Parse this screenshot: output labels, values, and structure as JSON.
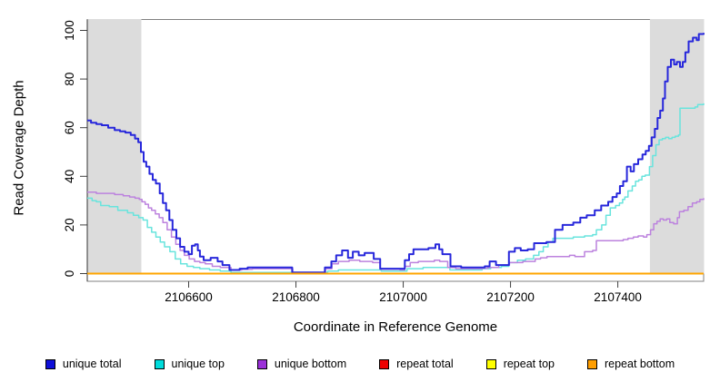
{
  "chart_data": {
    "type": "line",
    "title": "",
    "xlabel": "Coordinate in Reference Genome",
    "ylabel": "Read Coverage Depth",
    "xlim": [
      2106411,
      2107560
    ],
    "ylim": [
      0,
      100
    ],
    "x_ticks": [
      2106600,
      2106800,
      2107000,
      2107200,
      2107400
    ],
    "y_ticks": [
      0,
      20,
      40,
      60,
      80,
      100
    ],
    "grid": false,
    "legend_position": "bottom",
    "shaded_regions": [
      {
        "x0": 2106411,
        "x1": 2106511,
        "color": "#DCDCDC"
      },
      {
        "x0": 2107459,
        "x1": 2107560,
        "color": "#DCDCDC"
      }
    ],
    "draw_order": [
      "repeat total",
      "repeat top",
      "unique top",
      "unique bottom",
      "unique total",
      "repeat bottom"
    ],
    "series": [
      {
        "name": "unique total",
        "color": "#2727DB",
        "width": 2,
        "points": [
          [
            2106411,
            63
          ],
          [
            2106418,
            62
          ],
          [
            2106428,
            61.5
          ],
          [
            2106438,
            61
          ],
          [
            2106450,
            60
          ],
          [
            2106462,
            59
          ],
          [
            2106472,
            58.5
          ],
          [
            2106482,
            58
          ],
          [
            2106492,
            57
          ],
          [
            2106500,
            55.5
          ],
          [
            2106506,
            54
          ],
          [
            2106511,
            50
          ],
          [
            2106516,
            46
          ],
          [
            2106521,
            44
          ],
          [
            2106527,
            41
          ],
          [
            2106533,
            38.5
          ],
          [
            2106539,
            37
          ],
          [
            2106546,
            33
          ],
          [
            2106552,
            29
          ],
          [
            2106558,
            26
          ],
          [
            2106564,
            22
          ],
          [
            2106570,
            18
          ],
          [
            2106577,
            14.5
          ],
          [
            2106584,
            11
          ],
          [
            2106592,
            9
          ],
          [
            2106600,
            8
          ],
          [
            2106606,
            11.5
          ],
          [
            2106612,
            12
          ],
          [
            2106617,
            9.5
          ],
          [
            2106621,
            7
          ],
          [
            2106628,
            5.5
          ],
          [
            2106641,
            6.5
          ],
          [
            2106654,
            5
          ],
          [
            2106663,
            3.5
          ],
          [
            2106676,
            1.5
          ],
          [
            2106695,
            2
          ],
          [
            2106710,
            2.5
          ],
          [
            2106788,
            2.5
          ],
          [
            2106793,
            0.5
          ],
          [
            2106846,
            0.5
          ],
          [
            2106854,
            2.5
          ],
          [
            2106866,
            5
          ],
          [
            2106875,
            7.5
          ],
          [
            2106886,
            9.5
          ],
          [
            2106897,
            6.5
          ],
          [
            2106906,
            9
          ],
          [
            2106917,
            7.5
          ],
          [
            2106928,
            8.5
          ],
          [
            2106945,
            6
          ],
          [
            2106957,
            2
          ],
          [
            2106994,
            2
          ],
          [
            2107003,
            5.5
          ],
          [
            2107011,
            8
          ],
          [
            2107019,
            10
          ],
          [
            2107047,
            10.5
          ],
          [
            2107060,
            12
          ],
          [
            2107067,
            10
          ],
          [
            2107073,
            8
          ],
          [
            2107088,
            3
          ],
          [
            2107108,
            2.5
          ],
          [
            2107152,
            3
          ],
          [
            2107161,
            5
          ],
          [
            2107173,
            3.5
          ],
          [
            2107197,
            9
          ],
          [
            2107208,
            10.5
          ],
          [
            2107219,
            9.5
          ],
          [
            2107232,
            10
          ],
          [
            2107244,
            12.5
          ],
          [
            2107267,
            13
          ],
          [
            2107283,
            18
          ],
          [
            2107297,
            20
          ],
          [
            2107317,
            21
          ],
          [
            2107330,
            23
          ],
          [
            2107342,
            24
          ],
          [
            2107357,
            26
          ],
          [
            2107369,
            28
          ],
          [
            2107382,
            29.5
          ],
          [
            2107390,
            31.5
          ],
          [
            2107398,
            33
          ],
          [
            2107404,
            36
          ],
          [
            2107410,
            38
          ],
          [
            2107417,
            44
          ],
          [
            2107424,
            42
          ],
          [
            2107430,
            45
          ],
          [
            2107438,
            47
          ],
          [
            2107446,
            49
          ],
          [
            2107452,
            50.5
          ],
          [
            2107458,
            52.5
          ],
          [
            2107463,
            56
          ],
          [
            2107469,
            59.5
          ],
          [
            2107474,
            64
          ],
          [
            2107479,
            67
          ],
          [
            2107484,
            72
          ],
          [
            2107488,
            79
          ],
          [
            2107493,
            85
          ],
          [
            2107499,
            88
          ],
          [
            2107505,
            86
          ],
          [
            2107510,
            87
          ],
          [
            2107516,
            85
          ],
          [
            2107521,
            87
          ],
          [
            2107526,
            91
          ],
          [
            2107532,
            95.5
          ],
          [
            2107540,
            97
          ],
          [
            2107547,
            96
          ],
          [
            2107551,
            98.5
          ],
          [
            2107560,
            99
          ]
        ]
      },
      {
        "name": "unique top",
        "color": "#68E4DD",
        "width": 1.5,
        "points": [
          [
            2106411,
            31
          ],
          [
            2106420,
            30
          ],
          [
            2106428,
            29.5
          ],
          [
            2106436,
            28
          ],
          [
            2106452,
            27.5
          ],
          [
            2106468,
            26
          ],
          [
            2106486,
            25
          ],
          [
            2106497,
            24
          ],
          [
            2106507,
            23
          ],
          [
            2106515,
            22
          ],
          [
            2106523,
            19
          ],
          [
            2106531,
            17
          ],
          [
            2106539,
            15
          ],
          [
            2106547,
            13
          ],
          [
            2106555,
            11
          ],
          [
            2106565,
            9
          ],
          [
            2106575,
            6
          ],
          [
            2106585,
            4
          ],
          [
            2106597,
            3
          ],
          [
            2106609,
            2.5
          ],
          [
            2106621,
            2
          ],
          [
            2106639,
            1.5
          ],
          [
            2106659,
            1
          ],
          [
            2106679,
            0.5
          ],
          [
            2106849,
            0.5
          ],
          [
            2106859,
            1
          ],
          [
            2106879,
            1.5
          ],
          [
            2106929,
            1.5
          ],
          [
            2106959,
            1
          ],
          [
            2107007,
            2
          ],
          [
            2107037,
            2.5
          ],
          [
            2107087,
            1.5
          ],
          [
            2107147,
            2
          ],
          [
            2107163,
            2.5
          ],
          [
            2107183,
            3
          ],
          [
            2107197,
            4.5
          ],
          [
            2107213,
            5.5
          ],
          [
            2107228,
            6
          ],
          [
            2107243,
            7.5
          ],
          [
            2107253,
            9
          ],
          [
            2107261,
            11
          ],
          [
            2107270,
            13
          ],
          [
            2107279,
            14.5
          ],
          [
            2107317,
            15
          ],
          [
            2107338,
            15.5
          ],
          [
            2107353,
            16
          ],
          [
            2107360,
            18
          ],
          [
            2107370,
            20
          ],
          [
            2107378,
            24
          ],
          [
            2107386,
            27
          ],
          [
            2107396,
            28
          ],
          [
            2107403,
            29
          ],
          [
            2107409,
            30.5
          ],
          [
            2107413,
            31.5
          ],
          [
            2107419,
            34
          ],
          [
            2107427,
            36
          ],
          [
            2107433,
            38
          ],
          [
            2107439,
            38.5
          ],
          [
            2107445,
            40
          ],
          [
            2107451,
            40.5
          ],
          [
            2107459,
            44
          ],
          [
            2107465,
            48.5
          ],
          [
            2107471,
            53
          ],
          [
            2107477,
            55
          ],
          [
            2107483,
            55.5
          ],
          [
            2107489,
            56
          ],
          [
            2107495,
            55.5
          ],
          [
            2107501,
            56
          ],
          [
            2107507,
            56.5
          ],
          [
            2107513,
            57
          ],
          [
            2107516,
            68
          ],
          [
            2107544,
            68.5
          ],
          [
            2107549,
            69.5
          ],
          [
            2107560,
            70
          ]
        ]
      },
      {
        "name": "unique bottom",
        "color": "#BC82DE",
        "width": 1.5,
        "points": [
          [
            2106411,
            33.5
          ],
          [
            2106428,
            33
          ],
          [
            2106462,
            32.5
          ],
          [
            2106478,
            32
          ],
          [
            2106490,
            31.5
          ],
          [
            2106500,
            31
          ],
          [
            2106508,
            30.5
          ],
          [
            2106513,
            29.5
          ],
          [
            2106519,
            28.5
          ],
          [
            2106525,
            27
          ],
          [
            2106531,
            26
          ],
          [
            2106538,
            24.5
          ],
          [
            2106545,
            23
          ],
          [
            2106552,
            21
          ],
          [
            2106560,
            18
          ],
          [
            2106568,
            15
          ],
          [
            2106576,
            12
          ],
          [
            2106584,
            9.5
          ],
          [
            2106592,
            7.5
          ],
          [
            2106601,
            6
          ],
          [
            2106611,
            5
          ],
          [
            2106621,
            4.5
          ],
          [
            2106631,
            4
          ],
          [
            2106644,
            3
          ],
          [
            2106659,
            2.5
          ],
          [
            2106679,
            1.5
          ],
          [
            2106699,
            1.8
          ],
          [
            2106719,
            2
          ],
          [
            2106788,
            2
          ],
          [
            2106794,
            0.3
          ],
          [
            2106847,
            0.3
          ],
          [
            2106855,
            2
          ],
          [
            2106867,
            4
          ],
          [
            2106879,
            5
          ],
          [
            2106899,
            5.5
          ],
          [
            2106919,
            5
          ],
          [
            2106943,
            4.5
          ],
          [
            2106957,
            1.8
          ],
          [
            2106994,
            1.5
          ],
          [
            2107003,
            3
          ],
          [
            2107013,
            4.5
          ],
          [
            2107028,
            5
          ],
          [
            2107058,
            5.5
          ],
          [
            2107068,
            5
          ],
          [
            2107083,
            2.5
          ],
          [
            2107098,
            2
          ],
          [
            2107148,
            2.2
          ],
          [
            2107158,
            2.5
          ],
          [
            2107178,
            3.5
          ],
          [
            2107198,
            4.5
          ],
          [
            2107223,
            5
          ],
          [
            2107246,
            6
          ],
          [
            2107256,
            6.5
          ],
          [
            2107268,
            7
          ],
          [
            2107310,
            7.5
          ],
          [
            2107320,
            7
          ],
          [
            2107338,
            9
          ],
          [
            2107353,
            9.5
          ],
          [
            2107360,
            13.5
          ],
          [
            2107398,
            13.5
          ],
          [
            2107410,
            14
          ],
          [
            2107419,
            14.5
          ],
          [
            2107429,
            15
          ],
          [
            2107438,
            15.5
          ],
          [
            2107448,
            15
          ],
          [
            2107454,
            16
          ],
          [
            2107461,
            18
          ],
          [
            2107467,
            20.5
          ],
          [
            2107473,
            21.5
          ],
          [
            2107479,
            22.5
          ],
          [
            2107485,
            22
          ],
          [
            2107491,
            22.5
          ],
          [
            2107497,
            21
          ],
          [
            2107504,
            20.5
          ],
          [
            2107511,
            23
          ],
          [
            2107515,
            25.5
          ],
          [
            2107523,
            26
          ],
          [
            2107531,
            27.5
          ],
          [
            2107539,
            29
          ],
          [
            2107547,
            29.5
          ],
          [
            2107553,
            30.5
          ],
          [
            2107560,
            31
          ]
        ]
      },
      {
        "name": "repeat total",
        "color": "#E60000",
        "width": 1.5,
        "points": [
          [
            2106411,
            0
          ],
          [
            2107560,
            0
          ]
        ]
      },
      {
        "name": "repeat top",
        "color": "#FFFF00",
        "width": 1.5,
        "points": [
          [
            2106411,
            0
          ],
          [
            2107560,
            0
          ]
        ]
      },
      {
        "name": "repeat bottom",
        "color": "#FFA500",
        "width": 2,
        "points": [
          [
            2106411,
            0
          ],
          [
            2107560,
            0
          ]
        ]
      }
    ]
  },
  "legend": {
    "items": [
      {
        "label": "unique total",
        "color": "#0F0FD9"
      },
      {
        "label": "unique top",
        "color": "#00DCDC"
      },
      {
        "label": "unique bottom",
        "color": "#9B30D9"
      },
      {
        "label": "repeat total",
        "color": "#EE0000"
      },
      {
        "label": "repeat top",
        "color": "#FFFF00"
      },
      {
        "label": "repeat bottom",
        "color": "#FF9E00"
      }
    ]
  }
}
